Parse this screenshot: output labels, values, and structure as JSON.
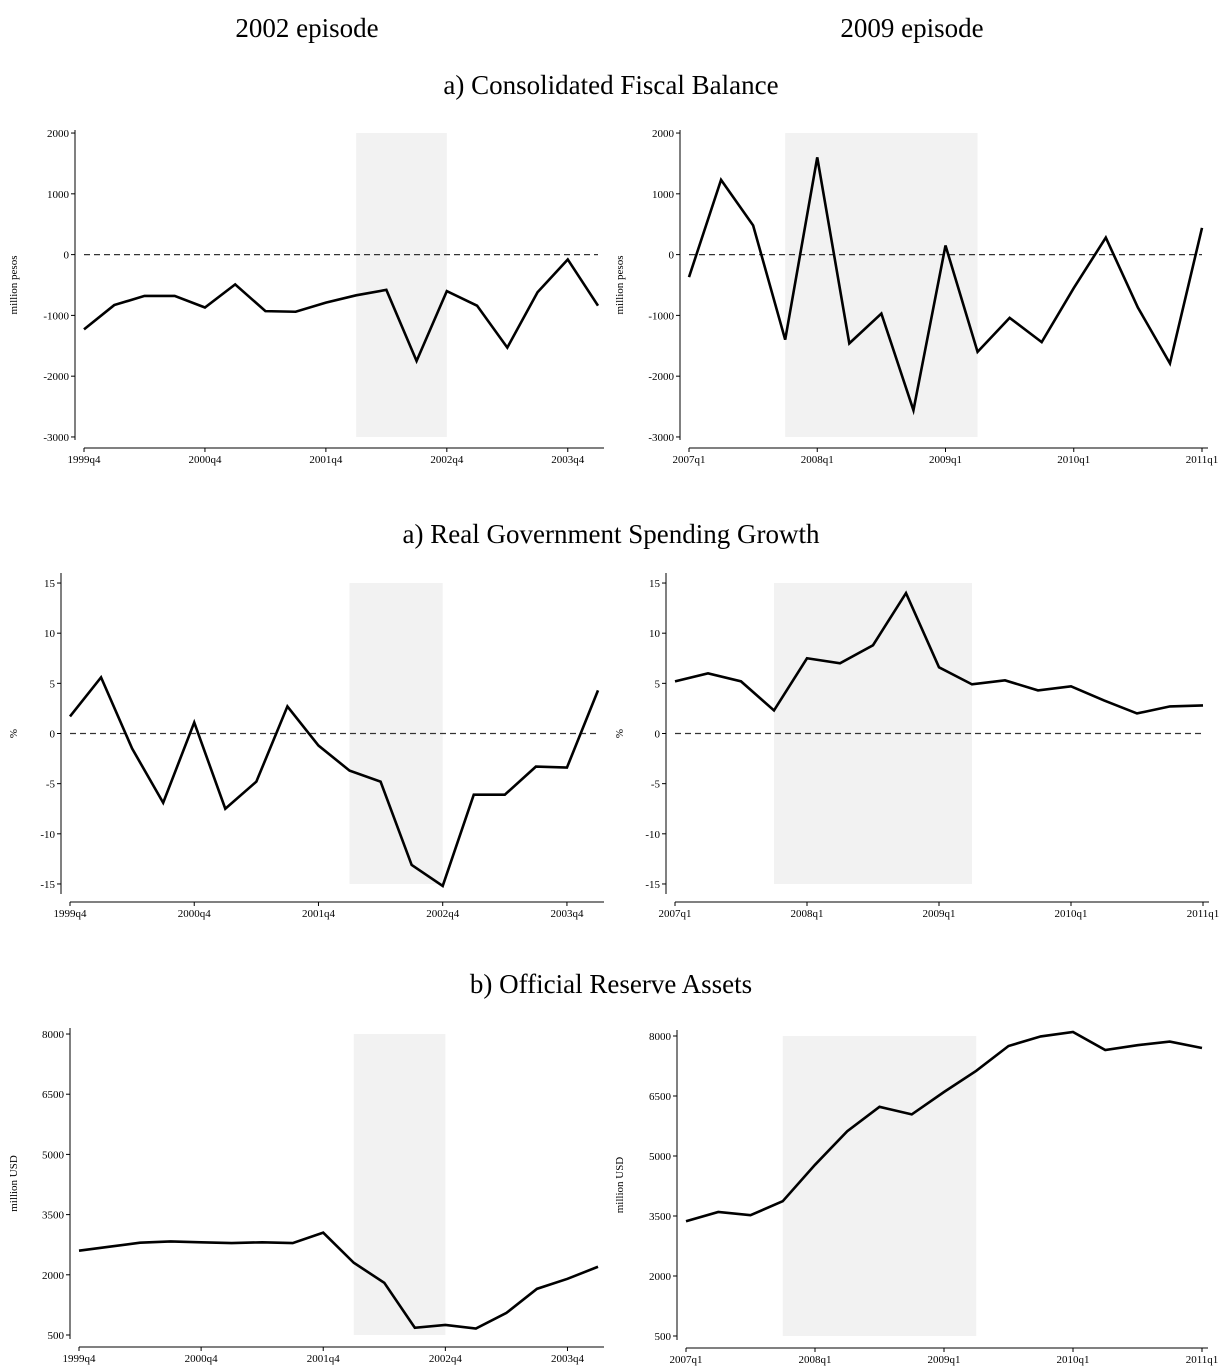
{
  "column_titles": [
    "2002 episode",
    "2009 episode"
  ],
  "row_titles": [
    "a) Consolidated Fiscal Balance",
    "a) Real Government Spending Growth",
    "b) Official Reserve Assets"
  ],
  "chart_data": [
    {
      "type": "line",
      "ylabel": "million pesos",
      "x": [
        1999.75,
        2000,
        2000.25,
        2000.5,
        2000.75,
        2001,
        2001.25,
        2001.5,
        2001.75,
        2002,
        2002.25,
        2002.5,
        2002.75,
        2003,
        2003.25,
        2003.5,
        2003.75,
        2004
      ],
      "series": [
        {
          "color": "#000000",
          "values": [
            -1230,
            -830,
            -680,
            -680,
            -870,
            -490,
            -930,
            -940,
            -790,
            -670,
            -580,
            -1750,
            -600,
            -840,
            -1530,
            -620,
            -80,
            -840
          ]
        }
      ],
      "xlim": [
        1999.75,
        2004
      ],
      "ylim": [
        -3050,
        2050
      ],
      "xticks": [
        {
          "value": 1999.75,
          "label": "1999q4"
        },
        {
          "value": 2000.75,
          "label": "2000q4"
        },
        {
          "value": 2001.75,
          "label": "2001q4"
        },
        {
          "value": 2002.75,
          "label": "2002q4"
        },
        {
          "value": 2003.75,
          "label": "2003q4"
        }
      ],
      "yticks": [
        -3000,
        -2000,
        -1000,
        0,
        1000,
        2000
      ],
      "shade": [
        2002,
        2002.75
      ],
      "reference_line": 0
    },
    {
      "type": "line",
      "ylabel": "million pesos",
      "x": [
        2007,
        2007.25,
        2007.5,
        2007.75,
        2008,
        2008.25,
        2008.5,
        2008.75,
        2009,
        2009.25,
        2009.5,
        2009.75,
        2010,
        2010.25,
        2010.5,
        2010.75,
        2011
      ],
      "series": [
        {
          "color": "#000000",
          "values": [
            -370,
            1230,
            480,
            -1400,
            1600,
            -1460,
            -970,
            -2560,
            150,
            -1600,
            -1040,
            -1440,
            -550,
            280,
            -870,
            -1790,
            440
          ]
        }
      ],
      "xlim": [
        2007,
        2011
      ],
      "ylim": [
        -3050,
        2050
      ],
      "xticks": [
        {
          "value": 2007,
          "label": "2007q1"
        },
        {
          "value": 2008,
          "label": "2008q1"
        },
        {
          "value": 2009,
          "label": "2009q1"
        },
        {
          "value": 2010,
          "label": "2010q1"
        },
        {
          "value": 2011,
          "label": "2011q1"
        }
      ],
      "yticks": [
        -3000,
        -2000,
        -1000,
        0,
        1000,
        2000
      ],
      "shade": [
        2007.75,
        2009.25
      ],
      "reference_line": 0
    },
    {
      "type": "line",
      "ylabel": "%",
      "x": [
        1999.75,
        2000,
        2000.25,
        2000.5,
        2000.75,
        2001,
        2001.25,
        2001.5,
        2001.75,
        2002,
        2002.25,
        2002.5,
        2002.75,
        2003,
        2003.25,
        2003.5,
        2003.75,
        2004
      ],
      "series": [
        {
          "color": "#000000",
          "values": [
            1.7,
            5.6,
            -1.5,
            -6.9,
            1.1,
            -7.5,
            -4.8,
            2.7,
            -1.2,
            -3.7,
            -4.8,
            -13.1,
            -15.2,
            -6.1,
            -6.1,
            -3.3,
            -3.4,
            4.3
          ]
        }
      ],
      "xlim": [
        1999.75,
        2004
      ],
      "ylim": [
        -16,
        16
      ],
      "xticks": [
        {
          "value": 1999.75,
          "label": "1999q4"
        },
        {
          "value": 2000.75,
          "label": "2000q4"
        },
        {
          "value": 2001.75,
          "label": "2001q4"
        },
        {
          "value": 2002.75,
          "label": "2002q4"
        },
        {
          "value": 2003.75,
          "label": "2003q4"
        }
      ],
      "yticks": [
        -15,
        -10,
        -5,
        0,
        5,
        10,
        15
      ],
      "shade": [
        2002,
        2002.75
      ],
      "reference_line": 0
    },
    {
      "type": "line",
      "ylabel": "%",
      "x": [
        2007,
        2007.25,
        2007.5,
        2007.75,
        2008,
        2008.25,
        2008.5,
        2008.75,
        2009,
        2009.25,
        2009.5,
        2009.75,
        2010,
        2010.25,
        2010.5,
        2010.75,
        2011
      ],
      "series": [
        {
          "color": "#000000",
          "values": [
            5.2,
            6.0,
            5.2,
            2.3,
            7.5,
            7.0,
            8.8,
            14.0,
            6.6,
            4.9,
            5.3,
            4.3,
            4.7,
            3.3,
            2.0,
            2.7,
            2.8
          ]
        }
      ],
      "xlim": [
        2007,
        2011
      ],
      "ylim": [
        -16,
        16
      ],
      "xticks": [
        {
          "value": 2007,
          "label": "2007q1"
        },
        {
          "value": 2008,
          "label": "2008q1"
        },
        {
          "value": 2009,
          "label": "2009q1"
        },
        {
          "value": 2010,
          "label": "2010q1"
        },
        {
          "value": 2011,
          "label": "2011q1"
        }
      ],
      "yticks": [
        -15,
        -10,
        -5,
        0,
        5,
        10,
        15
      ],
      "shade": [
        2007.75,
        2009.25
      ],
      "reference_line": 0
    },
    {
      "type": "line",
      "ylabel": "million USD",
      "x": [
        1999.75,
        2000,
        2000.25,
        2000.5,
        2000.75,
        2001,
        2001.25,
        2001.5,
        2001.75,
        2002,
        2002.25,
        2002.5,
        2002.75,
        2003,
        2003.25,
        2003.5,
        2003.75,
        2004
      ],
      "series": [
        {
          "color": "#000000",
          "values": [
            2600,
            2700,
            2800,
            2830,
            2810,
            2790,
            2810,
            2790,
            3050,
            2300,
            1800,
            680,
            750,
            660,
            1050,
            1650,
            1900,
            2200
          ]
        }
      ],
      "xlim": [
        1999.75,
        2004
      ],
      "ylim": [
        400,
        8150
      ],
      "xticks": [
        {
          "value": 1999.75,
          "label": "1999q4"
        },
        {
          "value": 2000.75,
          "label": "2000q4"
        },
        {
          "value": 2001.75,
          "label": "2001q4"
        },
        {
          "value": 2002.75,
          "label": "2002q4"
        },
        {
          "value": 2003.75,
          "label": "2003q4"
        }
      ],
      "yticks": [
        500,
        2000,
        3500,
        5000,
        6500,
        8000
      ],
      "shade": [
        2002,
        2002.75
      ]
    },
    {
      "type": "line",
      "ylabel": "million USD",
      "x": [
        2007,
        2007.25,
        2007.5,
        2007.75,
        2008,
        2008.25,
        2008.5,
        2008.75,
        2009,
        2009.25,
        2009.5,
        2009.75,
        2010,
        2010.25,
        2010.5,
        2010.75,
        2011
      ],
      "series": [
        {
          "color": "#000000",
          "values": [
            3370,
            3600,
            3520,
            3870,
            4780,
            5620,
            6230,
            6040,
            6600,
            7130,
            7750,
            7990,
            8100,
            7650,
            7770,
            7860,
            7700
          ]
        }
      ],
      "xlim": [
        2007,
        2011
      ],
      "ylim": [
        400,
        8150
      ],
      "xticks": [
        {
          "value": 2007,
          "label": "2007q1"
        },
        {
          "value": 2008,
          "label": "2008q1"
        },
        {
          "value": 2009,
          "label": "2009q1"
        },
        {
          "value": 2010,
          "label": "2010q1"
        },
        {
          "value": 2011,
          "label": "2011q1"
        }
      ],
      "yticks": [
        500,
        2000,
        3500,
        5000,
        6500,
        8000
      ],
      "shade": [
        2007.75,
        2009.25
      ]
    }
  ]
}
